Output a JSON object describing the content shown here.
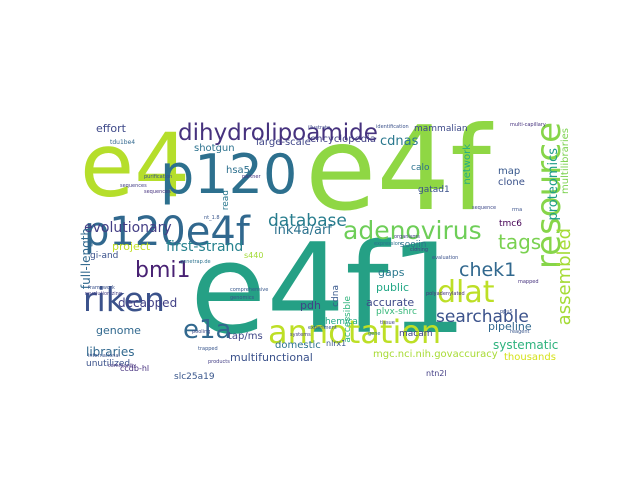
{
  "wordcloud": {
    "words": [
      {
        "text": "e4f1",
        "color": "#25a085"
      },
      {
        "text": "e4f",
        "color": "#8fd744"
      },
      {
        "text": "e4",
        "color": "#b5de2b"
      },
      {
        "text": "p120",
        "color": "#2d708e"
      },
      {
        "text": "p120e4f",
        "color": "#31688e"
      },
      {
        "text": "annotation",
        "color": "#bddf26"
      },
      {
        "text": "dihydrolipoamide",
        "color": "#46327e"
      },
      {
        "text": "riken",
        "color": "#3b528b"
      },
      {
        "text": "resource",
        "color": "#86d549"
      },
      {
        "text": "adenovirus",
        "color": "#6ece58"
      },
      {
        "text": "dlat",
        "color": "#bddf26"
      },
      {
        "text": "e1a",
        "color": "#31688e"
      },
      {
        "text": "database",
        "color": "#287d8e"
      },
      {
        "text": "tags",
        "color": "#7ad151"
      },
      {
        "text": "bmi1",
        "color": "#482173"
      },
      {
        "text": "chek1",
        "color": "#31688e"
      },
      {
        "text": "evolutionary",
        "color": "#433e85"
      },
      {
        "text": "assembled",
        "color": "#a5db36"
      },
      {
        "text": "searchable",
        "color": "#3b528b"
      },
      {
        "text": "proteomics",
        "color": "#1f9e89"
      },
      {
        "text": "ink4a/arf",
        "color": "#2c728e"
      },
      {
        "text": "first-strand",
        "color": "#26828e"
      },
      {
        "text": "full-length",
        "color": "#31688e"
      },
      {
        "text": "effort",
        "color": "#3e4989"
      },
      {
        "text": "shotgun",
        "color": "#2c728e"
      },
      {
        "text": "large-scale",
        "color": "#404688"
      },
      {
        "text": "encyclopedia",
        "color": "#423f85"
      },
      {
        "text": "cdnas",
        "color": "#2a788e"
      },
      {
        "text": "mammalian",
        "color": "#3e4a89"
      },
      {
        "text": "hsa5",
        "color": "#2d708e"
      },
      {
        "text": "project",
        "color": "#c2df23"
      },
      {
        "text": "decapped",
        "color": "#424086"
      },
      {
        "text": "genome",
        "color": "#31688e"
      },
      {
        "text": "pdh",
        "color": "#414487"
      },
      {
        "text": "gaps",
        "color": "#2a788e"
      },
      {
        "text": "soojin",
        "color": "#2c728e"
      },
      {
        "text": "network",
        "color": "#25ac82"
      },
      {
        "text": "calo",
        "color": "#2c728e"
      },
      {
        "text": "map",
        "color": "#38588c"
      },
      {
        "text": "clone",
        "color": "#3b528b"
      },
      {
        "text": "gatad1",
        "color": "#3b528b"
      },
      {
        "text": "tmc6",
        "color": "#440154"
      },
      {
        "text": "public",
        "color": "#22a785"
      },
      {
        "text": "accurate",
        "color": "#3e4989"
      },
      {
        "text": "systematic",
        "color": "#2db27d"
      },
      {
        "text": "pipeline",
        "color": "#31688e"
      },
      {
        "text": "thousands",
        "color": "#d5e21a"
      },
      {
        "text": "multifunctional",
        "color": "#3b528b"
      },
      {
        "text": "libraries",
        "color": "#31688e"
      },
      {
        "text": "unutilized",
        "color": "#3b528b"
      },
      {
        "text": "tap/ms",
        "color": "#3f4788"
      },
      {
        "text": "domestic",
        "color": "#2c728e"
      },
      {
        "text": "mgc.nci.nih.govaccuracy",
        "color": "#a8db34"
      },
      {
        "text": "plvx-shrc",
        "color": "#35b779"
      },
      {
        "text": "cdna",
        "color": "#38588c"
      },
      {
        "text": "accessible",
        "color": "#2fb47c"
      },
      {
        "text": "chemical",
        "color": "#22a884"
      },
      {
        "text": "slc25a19",
        "color": "#39568c"
      },
      {
        "text": "macam",
        "color": "#414487"
      },
      {
        "text": "nlrx1",
        "color": "#39568c"
      },
      {
        "text": "gi-and",
        "color": "#3b528b"
      },
      {
        "text": "ccdb-hl",
        "color": "#46317e"
      },
      {
        "text": "s440",
        "color": "#a2da37"
      },
      {
        "text": "read",
        "color": "#2a788e"
      },
      {
        "text": "ntn2l",
        "color": "#433e85"
      },
      {
        "text": "multilibraries",
        "color": "#7cd250"
      },
      {
        "text": "libraries",
        "color": "#31688e"
      }
    ],
    "tiny_words": [
      "tdu1be4",
      "purification",
      "sequences",
      "framework",
      "revolutionizing",
      "genetrap.de",
      "pooling",
      "community",
      "products",
      "trapped",
      "international",
      "comprehensive",
      "experiment",
      "systems",
      "multi-capillary",
      "illustrate",
      "organisms",
      "identification",
      "polyadenylated",
      "gene",
      "tissue",
      "rrna",
      "nt_1.8",
      "ppu5",
      "sequences",
      "evaluation",
      "sequence",
      "partner",
      "genomics",
      "expression",
      "cloning",
      "mapped",
      "reagent"
    ]
  }
}
